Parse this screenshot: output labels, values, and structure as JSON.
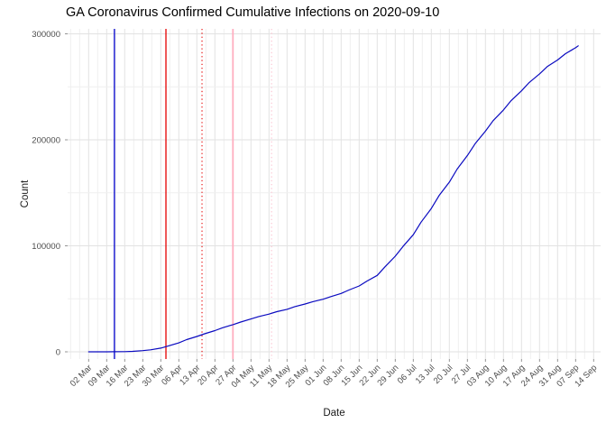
{
  "title": "GA Coronavirus Confirmed Cumulative Infections on 2020-09-10",
  "chart_data": {
    "type": "line",
    "title": "GA Coronavirus Confirmed Cumulative Infections on 2020-09-10",
    "xlabel": "Date",
    "ylabel": "Count",
    "grid": true,
    "legend": false,
    "x_range": [
      "2020-03-02",
      "2020-09-14"
    ],
    "ylim": [
      0,
      300000
    ],
    "y_ticks": [
      0,
      100000,
      200000,
      300000
    ],
    "y_tick_labels": [
      "0",
      "100000",
      "200000",
      "300000"
    ],
    "categories": [
      "02 Mar",
      "09 Mar",
      "16 Mar",
      "23 Mar",
      "30 Mar",
      "06 Apr",
      "13 Apr",
      "20 Apr",
      "27 Apr",
      "04 May",
      "11 May",
      "18 May",
      "25 May",
      "01 Jun",
      "08 Jun",
      "15 Jun",
      "22 Jun",
      "29 Jun",
      "06 Jul",
      "13 Jul",
      "20 Jul",
      "27 Jul",
      "03 Aug",
      "10 Aug",
      "17 Aug",
      "24 Aug",
      "31 Aug",
      "07 Sep",
      "14 Sep"
    ],
    "x_tick_dates": [
      "2020-03-02",
      "2020-03-09",
      "2020-03-16",
      "2020-03-23",
      "2020-03-30",
      "2020-04-06",
      "2020-04-13",
      "2020-04-20",
      "2020-04-27",
      "2020-05-04",
      "2020-05-11",
      "2020-05-18",
      "2020-05-25",
      "2020-06-01",
      "2020-06-08",
      "2020-06-15",
      "2020-06-22",
      "2020-06-29",
      "2020-07-06",
      "2020-07-13",
      "2020-07-20",
      "2020-07-27",
      "2020-08-03",
      "2020-08-10",
      "2020-08-17",
      "2020-08-24",
      "2020-08-31",
      "2020-09-07",
      "2020-09-14"
    ],
    "series": [
      {
        "name": "cumulative-confirmed-infections",
        "color": "#0a0ac0",
        "points": [
          [
            "2020-03-02",
            2
          ],
          [
            "2020-03-05",
            8
          ],
          [
            "2020-03-09",
            31
          ],
          [
            "2020-03-12",
            76
          ],
          [
            "2020-03-16",
            199
          ],
          [
            "2020-03-19",
            420
          ],
          [
            "2020-03-23",
            1097
          ],
          [
            "2020-03-26",
            1890
          ],
          [
            "2020-03-30",
            3480
          ],
          [
            "2020-04-02",
            5580
          ],
          [
            "2020-04-06",
            8420
          ],
          [
            "2020-04-09",
            11480
          ],
          [
            "2020-04-13",
            14480
          ],
          [
            "2020-04-16",
            17000
          ],
          [
            "2020-04-20",
            20000
          ],
          [
            "2020-04-23",
            22700
          ],
          [
            "2020-04-27",
            25600
          ],
          [
            "2020-04-30",
            28100
          ],
          [
            "2020-05-04",
            31000
          ],
          [
            "2020-05-07",
            33300
          ],
          [
            "2020-05-11",
            35600
          ],
          [
            "2020-05-14",
            37900
          ],
          [
            "2020-05-18",
            40100
          ],
          [
            "2020-05-21",
            42600
          ],
          [
            "2020-05-25",
            45100
          ],
          [
            "2020-05-28",
            47300
          ],
          [
            "2020-06-01",
            49600
          ],
          [
            "2020-06-04",
            52100
          ],
          [
            "2020-06-08",
            55100
          ],
          [
            "2020-06-11",
            58300
          ],
          [
            "2020-06-15",
            62100
          ],
          [
            "2020-06-18",
            66700
          ],
          [
            "2020-06-22",
            72100
          ],
          [
            "2020-06-25",
            80200
          ],
          [
            "2020-06-29",
            90200
          ],
          [
            "2020-07-02",
            99400
          ],
          [
            "2020-07-06",
            110500
          ],
          [
            "2020-07-09",
            122300
          ],
          [
            "2020-07-13",
            135200
          ],
          [
            "2020-07-16",
            147400
          ],
          [
            "2020-07-20",
            160100
          ],
          [
            "2020-07-23",
            172300
          ],
          [
            "2020-07-27",
            185200
          ],
          [
            "2020-07-30",
            196300
          ],
          [
            "2020-08-03",
            208200
          ],
          [
            "2020-08-06",
            218100
          ],
          [
            "2020-08-10",
            228200
          ],
          [
            "2020-08-13",
            237100
          ],
          [
            "2020-08-17",
            246200
          ],
          [
            "2020-08-20",
            254100
          ],
          [
            "2020-08-24",
            262200
          ],
          [
            "2020-08-27",
            269100
          ],
          [
            "2020-08-31",
            275300
          ],
          [
            "2020-09-03",
            281200
          ],
          [
            "2020-09-07",
            286900
          ],
          [
            "2020-09-08",
            288700
          ]
        ]
      }
    ],
    "vlines": [
      {
        "name": "event-vline-blue-solid",
        "date": "2020-03-12",
        "color": "#0000cc",
        "style": "solid",
        "width": 1.3
      },
      {
        "name": "event-vline-red-solid",
        "date": "2020-04-01",
        "color": "#e60000",
        "style": "solid",
        "width": 1.3
      },
      {
        "name": "event-vline-red-dotted",
        "date": "2020-04-15",
        "color": "#e60000",
        "style": "dotted",
        "width": 1.1
      },
      {
        "name": "event-vline-pink-solid",
        "date": "2020-04-27",
        "color": "#ffaec0",
        "style": "solid",
        "width": 1.8
      },
      {
        "name": "event-vline-pink-dotted",
        "date": "2020-05-12",
        "color": "#fcc9d6",
        "style": "dotted",
        "width": 1.3
      }
    ],
    "colors": {
      "grid_major": "#e2e2e2",
      "grid_minor": "#efefef",
      "tick": "#888888",
      "tick_label": "#4d4d4d",
      "axis_title": "#1a1a1a",
      "title": "#000000",
      "background": "#ffffff"
    }
  }
}
